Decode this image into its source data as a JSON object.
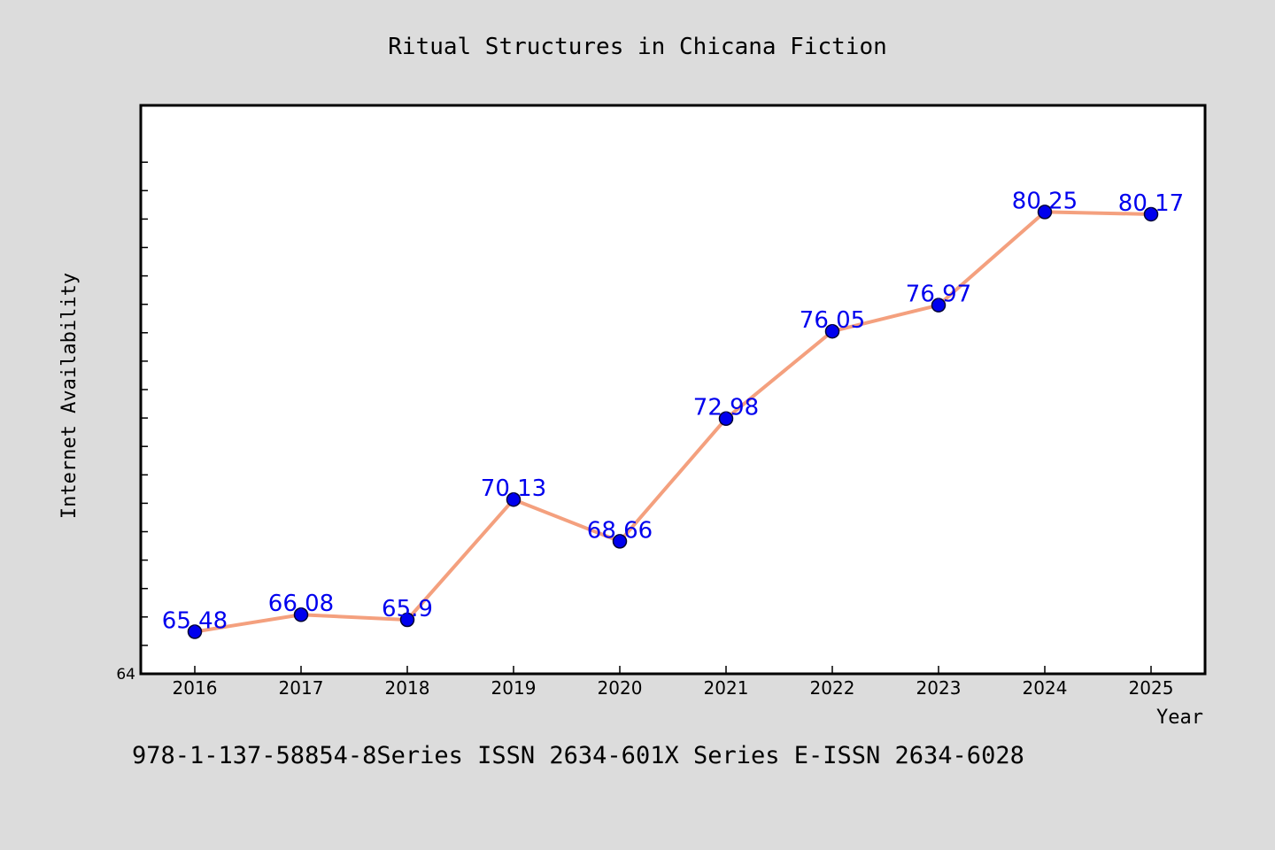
{
  "chart_data": {
    "type": "line",
    "title": "Ritual Structures in Chicana Fiction",
    "xlabel": "Year",
    "ylabel": "Internet Availability",
    "categories": [
      "2016",
      "2017",
      "2018",
      "2019",
      "2020",
      "2021",
      "2022",
      "2023",
      "2024",
      "2025"
    ],
    "series": [
      {
        "values": [
          65.48,
          66.08,
          65.9,
          70.13,
          68.66,
          72.98,
          76.05,
          76.97,
          80.25,
          80.17
        ],
        "labels": [
          "65.48",
          "66.08",
          "65.9",
          "70.13",
          "68.66",
          "72.98",
          "76.05",
          "76.97",
          "80.25",
          "80.17"
        ]
      }
    ],
    "ylim": [
      64,
      82
    ],
    "y_tick_labels": [
      "64"
    ],
    "grid": false,
    "colors": {
      "line": "#f4a07e",
      "marker": "#0000ee",
      "marker_edge": "#000033",
      "data_label": "#0000ee",
      "background": "#dcdcdc",
      "plot_area": "#ffffff"
    }
  },
  "footer": {
    "text": "978-1-137-58854-8Series ISSN 2634-601X Series E-ISSN 2634-6028"
  }
}
